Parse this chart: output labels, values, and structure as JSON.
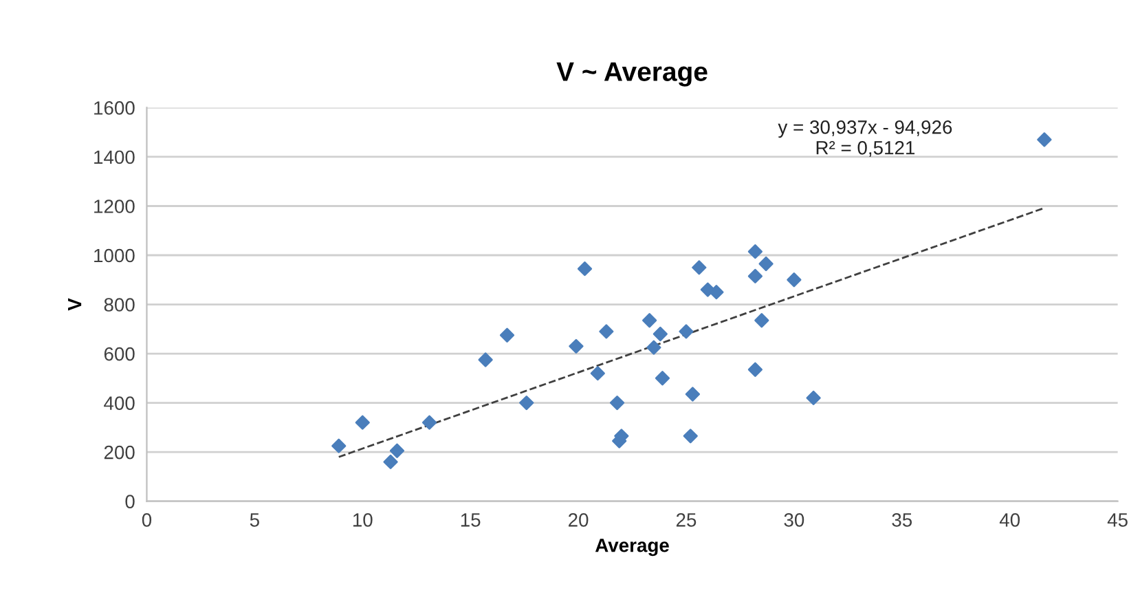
{
  "chart_data": {
    "type": "scatter",
    "title": "V ~ Average",
    "xlabel": "Average",
    "ylabel": "V",
    "xlim": [
      0,
      45
    ],
    "xticks": [
      0,
      5,
      10,
      15,
      20,
      25,
      30,
      35,
      40,
      45
    ],
    "ylim": [
      0,
      1600
    ],
    "yticks": [
      0,
      200,
      400,
      600,
      800,
      1000,
      1200,
      1400,
      1600
    ],
    "grid": "y",
    "annotations": [
      "y = 30,937x - 94,926\nR² = 0,5121"
    ],
    "series": [
      {
        "marker": "diamond",
        "color": "#4a7ebb",
        "x": [
          8.9,
          10,
          11.3,
          11.6,
          13.1,
          15.7,
          16.7,
          17.6,
          19.9,
          20.3,
          20.9,
          21.3,
          21.8,
          21.9,
          22.0,
          23.3,
          23.5,
          23.8,
          23.9,
          25.0,
          25.2,
          25.3,
          25.6,
          26.0,
          26.4,
          28.2,
          28.2,
          28.2,
          28.5,
          28.7,
          30.0,
          30.9,
          41.6
        ],
        "values": [
          225,
          320,
          160,
          205,
          320,
          575,
          675,
          400,
          630,
          945,
          520,
          690,
          400,
          245,
          265,
          735,
          625,
          680,
          500,
          690,
          265,
          435,
          950,
          860,
          850,
          1015,
          915,
          535,
          735,
          965,
          900,
          420,
          1470
        ]
      },
      {
        "type": "line",
        "color": "#404040",
        "line_style": "dashed",
        "x": [
          8.9,
          41.6
        ],
        "values": [
          180,
          1192
        ]
      }
    ]
  }
}
